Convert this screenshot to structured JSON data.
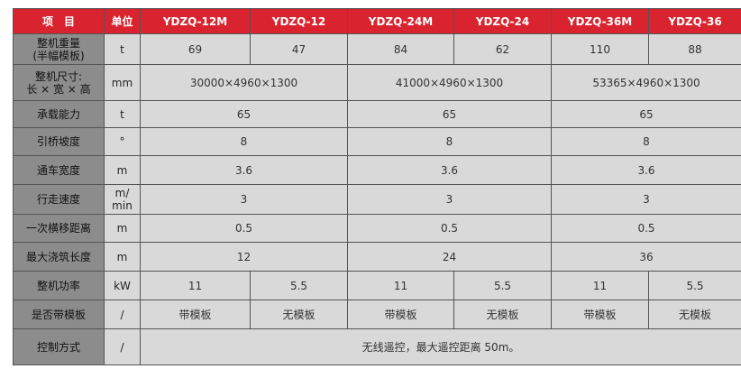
{
  "header": {
    "item_label": "项　目",
    "unit_label": "单位",
    "models": [
      "YDZQ-12M",
      "YDZQ-12",
      "YDZQ-24M",
      "YDZQ-24",
      "YDZQ-36M",
      "YDZQ-36"
    ]
  },
  "rows": {
    "weight": {
      "label_line1": "整机重量",
      "label_line2": "(半幅模板)",
      "unit": "t",
      "values": [
        "69",
        "47",
        "84",
        "62",
        "110",
        "88"
      ]
    },
    "size": {
      "label_line1": "整机尺寸:",
      "label_line2": "长 × 宽 × 高",
      "unit": "mm",
      "values": [
        "30000×4960×1300",
        "41000×4960×1300",
        "53365×4960×1300"
      ]
    },
    "capacity": {
      "label": "承载能力",
      "unit": "t",
      "values": [
        "65",
        "65",
        "65"
      ]
    },
    "slope": {
      "label": "引桥坡度",
      "unit": "°",
      "values": [
        "8",
        "8",
        "8"
      ]
    },
    "width": {
      "label": "通车宽度",
      "unit": "m",
      "values": [
        "3.6",
        "3.6",
        "3.6"
      ]
    },
    "speed": {
      "label": "行走速度",
      "unit_line1": "m/",
      "unit_line2": "min",
      "values": [
        "3",
        "3",
        "3"
      ]
    },
    "shift": {
      "label": "一次横移距离",
      "unit": "m",
      "values": [
        "0.5",
        "0.5",
        "0.5"
      ]
    },
    "pour": {
      "label": "最大浇筑长度",
      "unit": "m",
      "values": [
        "12",
        "24",
        "36"
      ]
    },
    "power": {
      "label": "整机功率",
      "unit": "kW",
      "values": [
        "11",
        "5.5",
        "11",
        "5.5",
        "11",
        "5.5"
      ]
    },
    "formwork": {
      "label": "是否带模板",
      "unit": "/",
      "values": [
        "带模板",
        "无模板",
        "带模板",
        "无模板",
        "带模板",
        "无模板"
      ]
    },
    "control": {
      "label": "控制方式",
      "unit": "/",
      "value": "无线遥控，最大遥控距离 50m。"
    }
  }
}
